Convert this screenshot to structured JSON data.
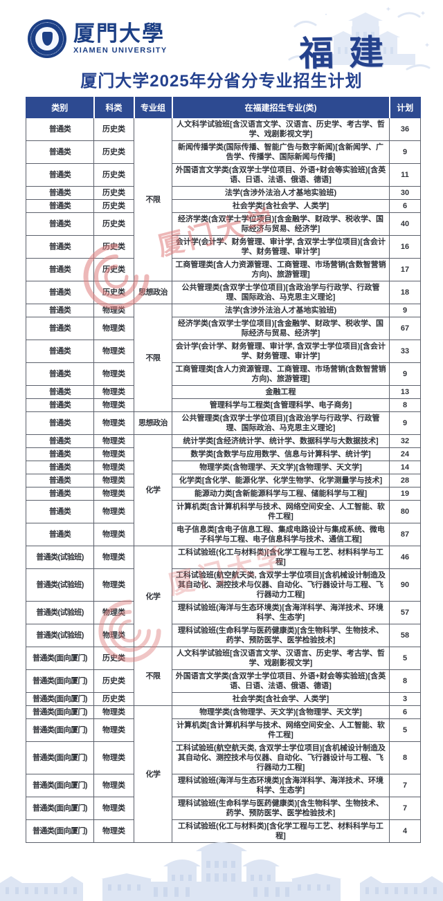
{
  "header": {
    "university_cn": "厦門大學",
    "university_en": "XIAMEN UNIVERSITY",
    "province_badge": "福建"
  },
  "title": "厦门大学2025年分省分专业招生计划",
  "table": {
    "columns": [
      "类别",
      "科类",
      "专业组",
      "在福建招生专业(类)",
      "计划"
    ],
    "groups": [
      {
        "label": "不限",
        "start": 0,
        "span": 8
      },
      {
        "label": "思想政治",
        "start": 8,
        "span": 1
      },
      {
        "label": "不限",
        "start": 9,
        "span": 6
      },
      {
        "label": "思想政治",
        "start": 15,
        "span": 1
      },
      {
        "label": "化学",
        "start": 16,
        "span": 7
      },
      {
        "label": "化学",
        "start": 23,
        "span": 4
      },
      {
        "label": "不限",
        "start": 27,
        "span": 3
      },
      {
        "label": "化学",
        "start": 30,
        "span": 6
      }
    ],
    "rows": [
      [
        "普通类",
        "历史类",
        "人文科学试验班[含汉语言文学、汉语言、历史学、考古学、哲学、戏剧影视文学]",
        36
      ],
      [
        "普通类",
        "历史类",
        "新闻传播学类(国际传播、智能广告与数字新闻)[含新闻学、广告学、传播学、国际新闻与传播]",
        9
      ],
      [
        "普通类",
        "历史类",
        "外国语言文学类(含双学士学位项目、外语+财会等实验班)[含英语、日语、法语、俄语、德语]",
        11
      ],
      [
        "普通类",
        "历史类",
        "法学(含涉外法治人才基地实验班)",
        30
      ],
      [
        "普通类",
        "历史类",
        "社会学类[含社会学、人类学]",
        6
      ],
      [
        "普通类",
        "历史类",
        "经济学类(含双学士学位项目)[含金融学、财政学、税收学、国际经济与贸易、经济学]",
        40
      ],
      [
        "普通类",
        "历史类",
        "会计学(会计学、财务管理、审计学, 含双学士学位项目)[含会计学、财务管理、审计学]",
        16
      ],
      [
        "普通类",
        "历史类",
        "工商管理类[含人力资源管理、工商管理、市场营销(含数智营销方向)、旅游管理]",
        17
      ],
      [
        "普通类",
        "历史类",
        "公共管理类(含双学士学位项目)[含政治学与行政学、行政管理、国际政治、马克思主义理论]",
        18
      ],
      [
        "普通类",
        "物理类",
        "法学(含涉外法治人才基地实验班)",
        9
      ],
      [
        "普通类",
        "物理类",
        "经济学类(含双学士学位项目)[含金融学、财政学、税收学、国际经济与贸易、经济学]",
        67
      ],
      [
        "普通类",
        "物理类",
        "会计学(会计学、财务管理、审计学, 含双学士学位项目)[含会计学、财务管理、审计学]",
        33
      ],
      [
        "普通类",
        "物理类",
        "工商管理类[含人力资源管理、工商管理、市场营销(含数智营销方向)、旅游管理]",
        9
      ],
      [
        "普通类",
        "物理类",
        "金融工程",
        13
      ],
      [
        "普通类",
        "物理类",
        "管理科学与工程类[含管理科学、电子商务]",
        8
      ],
      [
        "普通类",
        "物理类",
        "公共管理类(含双学士学位项目)[含政治学与行政学、行政管理、国际政治、马克思主义理论]",
        9
      ],
      [
        "普通类",
        "物理类",
        "统计学类[含经济统计学、统计学、数据科学与大数据技术]",
        32
      ],
      [
        "普通类",
        "物理类",
        "数学类[含数学与应用数学、信息与计算科学、统计学]",
        24
      ],
      [
        "普通类",
        "物理类",
        "物理学类(含物理学、天文学)[含物理学、天文学]",
        14
      ],
      [
        "普通类",
        "物理类",
        "化学类[含化学、能源化学、化学生物学、化学测量学与技术]",
        28
      ],
      [
        "普通类",
        "物理类",
        "能源动力类[含新能源科学与工程、储能科学与工程]",
        19
      ],
      [
        "普通类",
        "物理类",
        "计算机类[含计算机科学与技术、网络空间安全、人工智能、软件工程]",
        80
      ],
      [
        "普通类",
        "物理类",
        "电子信息类[含电子信息工程、集成电路设计与集成系统、微电子科学与工程、电子信息科学与技术、通信工程]",
        87
      ],
      [
        "普通类(试验班)",
        "物理类",
        "工科试验班(化工与材料类)[含化学工程与工艺、材料科学与工程]",
        46
      ],
      [
        "普通类(试验班)",
        "物理类",
        "工科试验班(航空航天类, 含双学士学位项目)[含机械设计制造及其自动化、测控技术与仪器、自动化、飞行器设计与工程、飞行器动力工程]",
        90
      ],
      [
        "普通类(试验班)",
        "物理类",
        "理科试验班(海洋与生态环境类)[含海洋科学、海洋技术、环境科学、生态学]",
        57
      ],
      [
        "普通类(试验班)",
        "物理类",
        "理科试验班(生命科学与医药健康类)[含生物科学、生物技术、药学、预防医学、医学检验技术]",
        58
      ],
      [
        "普通类(面向厦门)",
        "历史类",
        "人文科学试验班[含汉语言文学、汉语言、历史学、考古学、哲学、戏剧影视文学]",
        5
      ],
      [
        "普通类(面向厦门)",
        "历史类",
        "外国语言文学类(含双学士学位项目、外语+财会等实验班)[含英语、日语、法语、俄语、德语]",
        8
      ],
      [
        "普通类(面向厦门)",
        "历史类",
        "社会学类[含社会学、人类学]",
        3
      ],
      [
        "普通类(面向厦门)",
        "物理类",
        "物理学类(含物理学、天文学)[含物理学、天文学]",
        6
      ],
      [
        "普通类(面向厦门)",
        "物理类",
        "计算机类[含计算机科学与技术、网络空间安全、人工智能、软件工程]",
        5
      ],
      [
        "普通类(面向厦门)",
        "物理类",
        "工科试验班(航空航天类, 含双学士学位项目)[含机械设计制造及其自动化、测控技术与仪器、自动化、飞行器设计与工程、飞行器动力工程]",
        8
      ],
      [
        "普通类(面向厦门)",
        "物理类",
        "理科试验班(海洋与生态环境类)[含海洋科学、海洋技术、环境科学、生态学]",
        7
      ],
      [
        "普通类(面向厦门)",
        "物理类",
        "理科试验班(生命科学与医药健康类)[含生物科学、生物技术、药学、预防医学、医学检验技术]",
        7
      ],
      [
        "普通类(面向厦门)",
        "物理类",
        "工科试验班(化工与材料类)[含化学工程与工艺、材料科学与工程]",
        4
      ]
    ]
  },
  "watermark": {
    "text": "厦门大学"
  },
  "colors": {
    "header_bg": "#2d4a91",
    "title_blue": "#24418e",
    "logo_blue": "#1c3f85",
    "cell_border": "#5a5f6a",
    "watermark_red": "#dc6f6f",
    "skyline_blue": "#dde5f3"
  }
}
